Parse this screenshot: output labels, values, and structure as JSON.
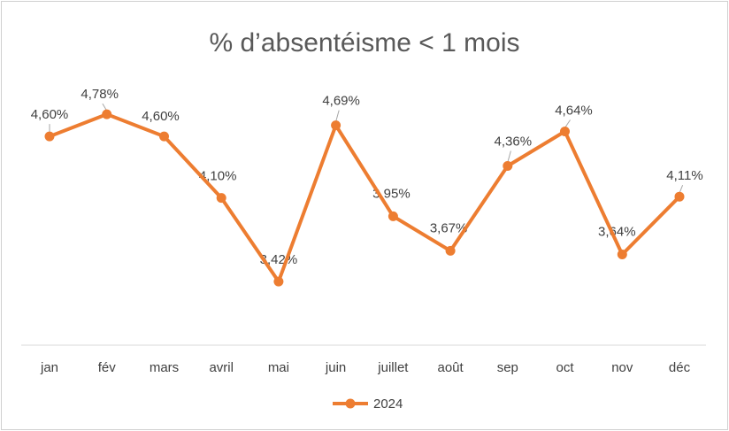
{
  "chart_data": {
    "type": "line",
    "title": "% d’absentéisme < 1 mois",
    "categories": [
      "jan",
      "fév",
      "mars",
      "avril",
      "mai",
      "juin",
      "juillet",
      "août",
      "sep",
      "oct",
      "nov",
      "déc"
    ],
    "series": [
      {
        "name": "2024",
        "color": "#ED7D31",
        "values": [
          4.6,
          4.78,
          4.6,
          4.1,
          3.42,
          4.69,
          3.95,
          3.67,
          4.36,
          4.64,
          3.64,
          4.11
        ],
        "labels": [
          "4,60%",
          "4,78%",
          "4,60%",
          "4,10%",
          "3,42%",
          "4,69%",
          "3,95%",
          "3,67%",
          "4,36%",
          "4,64%",
          "3,64%",
          "4,11%"
        ]
      }
    ],
    "ylim": [
      0,
      5.5
    ],
    "grid": false,
    "legend": "bottom",
    "xlabel": "",
    "ylabel": ""
  }
}
